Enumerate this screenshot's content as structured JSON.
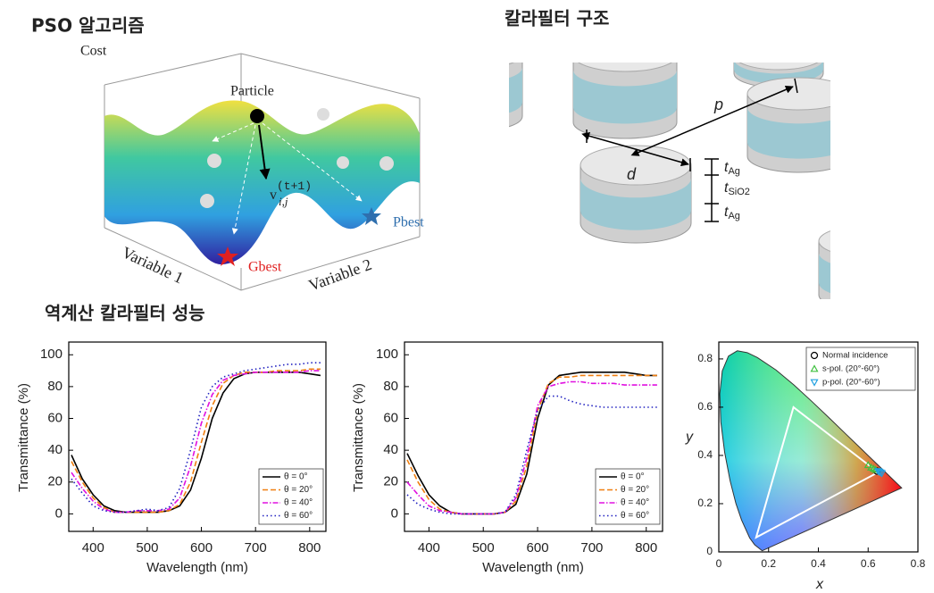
{
  "headings": {
    "pso": "PSO 알고리즘",
    "structure": "칼라필터 구조",
    "performance": "역계산 칼라필터 성능"
  },
  "pso_diagram": {
    "cost": "Cost",
    "particle": "Particle",
    "velocity": {
      "base": "v",
      "sup": "(t+1)",
      "sub": "i,j"
    },
    "pbest": "Pbest",
    "gbest": "Gbest",
    "axis1": "Variable 1",
    "axis2": "Variable 2"
  },
  "structure_diagram": {
    "pitch": "p",
    "diameter": "d",
    "layers": [
      {
        "t": "t",
        "sub": "Ag"
      },
      {
        "t": "t",
        "sub": "SiO2"
      },
      {
        "t": "t",
        "sub": "Ag"
      }
    ]
  },
  "chart_data": [
    {
      "type": "line",
      "xlabel": "Wavelength (nm)",
      "ylabel": "Transmittance (%)",
      "x": [
        360,
        380,
        400,
        420,
        440,
        460,
        480,
        500,
        520,
        540,
        560,
        580,
        600,
        620,
        640,
        660,
        680,
        700,
        720,
        740,
        760,
        780,
        800,
        820
      ],
      "xlim": [
        355,
        830
      ],
      "xticks": [
        400,
        500,
        600,
        700,
        800
      ],
      "ylim": [
        -11,
        108
      ],
      "yticks": [
        0,
        20,
        40,
        60,
        80,
        100
      ],
      "legend": "lower right",
      "series": [
        {
          "name": "θ = 0°",
          "color": "#000000",
          "style": "solid",
          "values": [
            37,
            22,
            12,
            5,
            2,
            1,
            1,
            1,
            1,
            2,
            5,
            15,
            35,
            60,
            76,
            85,
            88,
            89,
            89,
            89,
            89,
            89,
            88,
            87
          ]
        },
        {
          "name": "θ = 20°",
          "color": "#f07f10",
          "style": "dashed",
          "values": [
            33,
            20,
            10,
            4,
            1,
            1,
            1,
            1,
            1,
            2,
            6,
            20,
            45,
            68,
            82,
            87,
            89,
            89,
            89,
            90,
            90,
            90,
            91,
            91
          ]
        },
        {
          "name": "θ = 40°",
          "color": "#e010e0",
          "style": "dashdot",
          "values": [
            26,
            16,
            8,
            3,
            1,
            1,
            2,
            2,
            2,
            3,
            10,
            30,
            57,
            75,
            84,
            87,
            88,
            89,
            89,
            89,
            89,
            89,
            90,
            90
          ]
        },
        {
          "name": "θ = 60°",
          "color": "#2020c0",
          "style": "dotted",
          "values": [
            22,
            13,
            5,
            2,
            1,
            1,
            2,
            3,
            2,
            4,
            16,
            40,
            67,
            80,
            86,
            88,
            90,
            91,
            92,
            93,
            94,
            94,
            95,
            95
          ]
        }
      ]
    },
    {
      "type": "line",
      "xlabel": "Wavelength (nm)",
      "ylabel": "Transmittance (%)",
      "x": [
        360,
        380,
        400,
        420,
        440,
        460,
        480,
        500,
        520,
        540,
        560,
        580,
        600,
        620,
        640,
        660,
        680,
        700,
        720,
        740,
        760,
        780,
        800,
        820
      ],
      "xlim": [
        355,
        830
      ],
      "xticks": [
        400,
        500,
        600,
        700,
        800
      ],
      "ylim": [
        -11,
        108
      ],
      "yticks": [
        0,
        20,
        40,
        60,
        80,
        100
      ],
      "legend": "lower right",
      "series": [
        {
          "name": "θ = 0°",
          "color": "#000000",
          "style": "solid",
          "values": [
            38,
            24,
            12,
            5,
            1,
            0,
            0,
            0,
            0,
            1,
            6,
            25,
            60,
            81,
            87,
            88,
            89,
            89,
            89,
            89,
            89,
            88,
            87,
            87
          ]
        },
        {
          "name": "θ = 20°",
          "color": "#f07f10",
          "style": "dashed",
          "values": [
            34,
            20,
            9,
            3,
            1,
            0,
            0,
            0,
            0,
            1,
            8,
            30,
            65,
            82,
            86,
            86,
            87,
            87,
            87,
            87,
            87,
            87,
            87,
            87
          ]
        },
        {
          "name": "θ = 40°",
          "color": "#e010e0",
          "style": "dashdot",
          "values": [
            20,
            12,
            5,
            2,
            1,
            0,
            0,
            0,
            0,
            1,
            10,
            35,
            68,
            80,
            82,
            83,
            83,
            82,
            82,
            82,
            81,
            81,
            81,
            81
          ]
        },
        {
          "name": "θ = 60°",
          "color": "#2020c0",
          "style": "dotted",
          "values": [
            12,
            6,
            3,
            1,
            0,
            0,
            0,
            0,
            0,
            1,
            12,
            40,
            65,
            74,
            74,
            71,
            69,
            68,
            67,
            67,
            67,
            67,
            67,
            67
          ]
        }
      ]
    },
    {
      "type": "scatter",
      "xlabel": "x",
      "ylabel": "y",
      "xlim": [
        0,
        0.8
      ],
      "xticks": [
        0,
        0.2,
        0.4,
        0.6,
        0.8
      ],
      "ylim": [
        0,
        0.87
      ],
      "yticks": [
        0,
        0.2,
        0.4,
        0.6,
        0.8
      ],
      "legend": "upper right",
      "locus": {
        "x": [
          0.1741,
          0.144,
          0.1241,
          0.0913,
          0.0687,
          0.0454,
          0.0235,
          0.0082,
          0.0039,
          0.0139,
          0.0389,
          0.0743,
          0.1142,
          0.1547,
          0.2296,
          0.3016,
          0.3731,
          0.4441,
          0.5125,
          0.5752,
          0.627,
          0.6658,
          0.6915,
          0.7347
        ],
        "y": [
          0.005,
          0.0297,
          0.0578,
          0.1327,
          0.2007,
          0.295,
          0.4127,
          0.5384,
          0.6548,
          0.7502,
          0.812,
          0.8338,
          0.8262,
          0.8059,
          0.7543,
          0.6923,
          0.6245,
          0.5547,
          0.4866,
          0.4242,
          0.3725,
          0.334,
          0.3083,
          0.2653
        ]
      },
      "gamut": {
        "x": [
          0.64,
          0.3,
          0.15
        ],
        "y": [
          0.33,
          0.6,
          0.06
        ]
      },
      "series": [
        {
          "name": "Normal incidence",
          "color": "#000000",
          "marker": "circle",
          "x": [
            0.635
          ],
          "values": [
            0.335
          ]
        },
        {
          "name": "s-pol. (20°-60°)",
          "color": "#40c040",
          "marker": "triangle-up",
          "x": [
            0.63,
            0.622,
            0.612,
            0.6
          ],
          "values": [
            0.34,
            0.345,
            0.35,
            0.36
          ]
        },
        {
          "name": "p-pol. (20°-60°)",
          "color": "#20a0e0",
          "marker": "triangle-down",
          "x": [
            0.64,
            0.645,
            0.65,
            0.655
          ],
          "values": [
            0.335,
            0.332,
            0.329,
            0.326
          ]
        }
      ]
    }
  ]
}
